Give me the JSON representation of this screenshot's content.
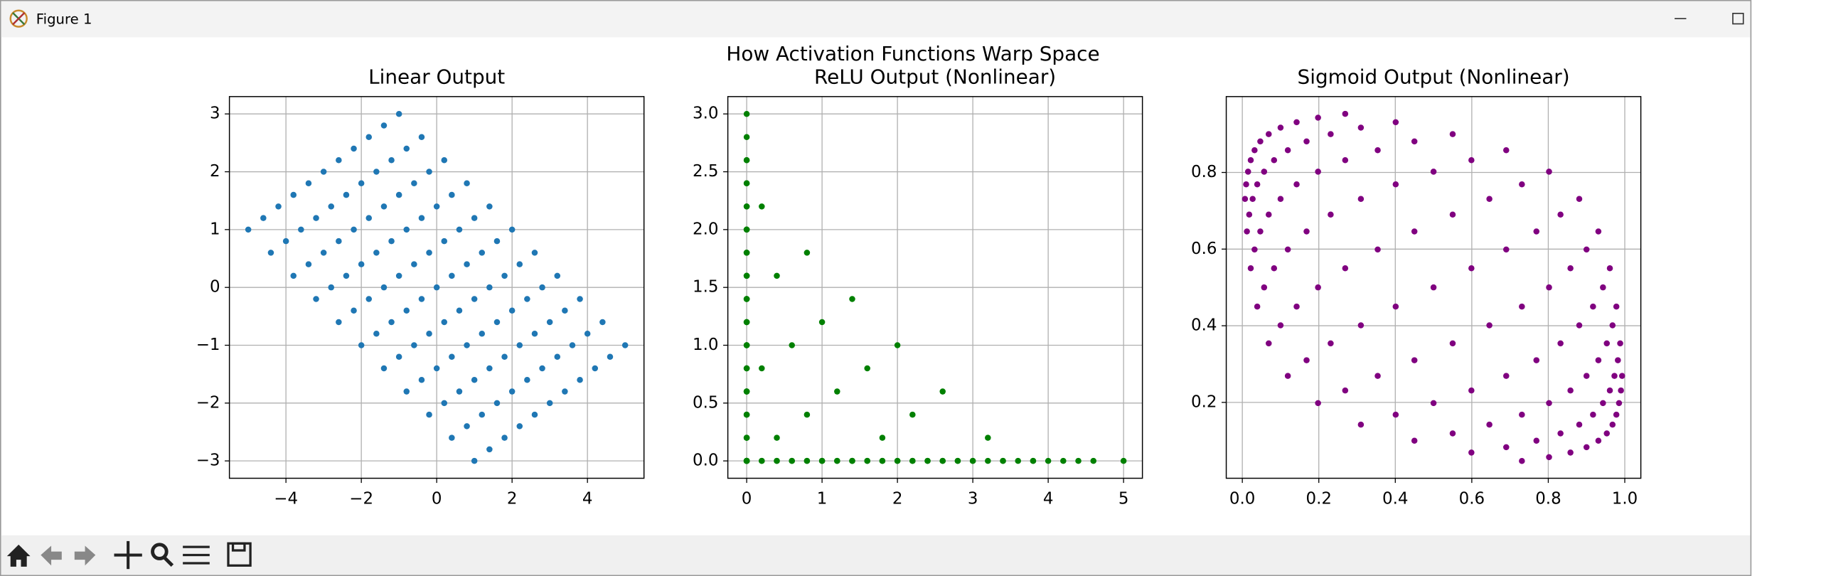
{
  "window": {
    "title": "Figure 1"
  },
  "figure_title": "How Activation Functions Warp Space",
  "chart_data": [
    {
      "type": "scatter",
      "title": "Linear Output",
      "color": "#1f77b4",
      "grid": true,
      "xlim": [
        -5.5,
        5.5
      ],
      "ylim": [
        -3.3,
        3.3
      ],
      "xticks": [
        {
          "value": -4,
          "label": "−4"
        },
        {
          "value": -2,
          "label": "−2"
        },
        0,
        2,
        4
      ],
      "yticks": [
        {
          "value": -3,
          "label": "−3"
        },
        {
          "value": -2,
          "label": "−2"
        },
        {
          "value": -1,
          "label": "−1"
        },
        0,
        1,
        2,
        3
      ],
      "x": [
        1,
        0.4,
        -0.2,
        -0.8,
        -1.4,
        -2,
        -2.6,
        -3.2,
        -3.8,
        -4.4,
        -5,
        1.4,
        0.8,
        0.2,
        -0.4,
        -1,
        -1.6,
        -2.2,
        -2.8,
        -3.4,
        -4,
        -4.6,
        1.8,
        1.2,
        0.6,
        0,
        -0.6,
        -1.2,
        -1.8,
        -2.4,
        -3,
        -3.6,
        -4.2,
        2.2,
        1.6,
        1,
        0.4,
        -0.2,
        -0.8,
        -1.4,
        -2,
        -2.6,
        -3.2,
        -3.8,
        2.6,
        2,
        1.4,
        0.8,
        0.2,
        -0.4,
        -1,
        -1.6,
        -2.2,
        -2.8,
        -3.4,
        3,
        2.4,
        1.8,
        1.2,
        0.6,
        0,
        -0.6,
        -1.2,
        -1.8,
        -2.4,
        -3,
        3.4,
        2.8,
        2.2,
        1.6,
        1,
        0.4,
        -0.2,
        -0.8,
        -1.4,
        -2,
        -2.6,
        3.8,
        3.2,
        2.6,
        2,
        1.4,
        0.8,
        0.2,
        -0.4,
        -1,
        -1.6,
        -2.2,
        4.2,
        3.6,
        3,
        2.4,
        1.8,
        1.2,
        0.6,
        0,
        -0.6,
        -1.2,
        -1.8,
        4.6,
        4,
        3.4,
        2.8,
        2.2,
        1.6,
        1,
        0.4,
        -0.2,
        -0.8,
        -1.4,
        5,
        4.4,
        3.8,
        3.2,
        2.6,
        2,
        1.4,
        0.8,
        0.2,
        -0.4,
        -1
      ],
      "values": [
        -3,
        -2.6,
        -2.2,
        -1.8,
        -1.4,
        -1,
        -0.6,
        -0.2,
        0.2,
        0.6,
        1,
        -2.8,
        -2.4,
        -2,
        -1.6,
        -1.2,
        -0.8,
        -0.4,
        0,
        0.4,
        0.8,
        1.2,
        -2.6,
        -2.2,
        -1.8,
        -1.4,
        -1,
        -0.6,
        -0.2,
        0.2,
        0.6,
        1,
        1.4,
        -2.4,
        -2,
        -1.6,
        -1.2,
        -0.8,
        -0.4,
        0,
        0.4,
        0.8,
        1.2,
        1.6,
        -2.2,
        -1.8,
        -1.4,
        -1,
        -0.6,
        -0.2,
        0.2,
        0.6,
        1,
        1.4,
        1.8,
        -2,
        -1.6,
        -1.2,
        -0.8,
        -0.4,
        0,
        0.4,
        0.8,
        1.2,
        1.6,
        2,
        -1.8,
        -1.4,
        -1,
        -0.6,
        -0.2,
        0.2,
        0.6,
        1,
        1.4,
        1.8,
        2.2,
        -1.6,
        -1.2,
        -0.8,
        -0.4,
        0,
        0.4,
        0.8,
        1.2,
        1.6,
        2,
        2.4,
        -1.4,
        -1,
        -0.6,
        -0.2,
        0.2,
        0.6,
        1,
        1.4,
        1.8,
        2.2,
        2.6,
        -1.2,
        -0.8,
        -0.4,
        0,
        0.4,
        0.8,
        1.2,
        1.6,
        2,
        2.4,
        2.8,
        -1,
        -0.6,
        -0.2,
        0.2,
        0.6,
        1,
        1.4,
        1.8,
        2.2,
        2.6,
        3
      ]
    },
    {
      "type": "scatter",
      "title": "ReLU Output (Nonlinear)",
      "color": "green",
      "grid": true,
      "xlim": [
        -0.25,
        5.25
      ],
      "ylim": [
        -0.15,
        3.15
      ],
      "xticks": [
        0,
        1,
        2,
        3,
        4,
        5
      ],
      "yticks": [
        {
          "value": 0,
          "label": "0.0"
        },
        0.5,
        {
          "value": 1,
          "label": "1.0"
        },
        1.5,
        {
          "value": 2,
          "label": "2.0"
        },
        2.5,
        {
          "value": 3,
          "label": "3.0"
        }
      ],
      "x": [
        1,
        0.4,
        0,
        0,
        0,
        0,
        0,
        0,
        0,
        0,
        0,
        1.4,
        0.8,
        0.2,
        0,
        0,
        0,
        0,
        0,
        0,
        0,
        0,
        1.8,
        1.2,
        0.6,
        0,
        0,
        0,
        0,
        0,
        0,
        0,
        0,
        2.2,
        1.6,
        1,
        0.4,
        0,
        0,
        0,
        0,
        0,
        0,
        0,
        2.6,
        2,
        1.4,
        0.8,
        0.2,
        0,
        0,
        0,
        0,
        0,
        0,
        3,
        2.4,
        1.8,
        1.2,
        0.6,
        0,
        0,
        0,
        0,
        0,
        0,
        3.4,
        2.8,
        2.2,
        1.6,
        1,
        0.4,
        0,
        0,
        0,
        0,
        0,
        3.8,
        3.2,
        2.6,
        2,
        1.4,
        0.8,
        0.2,
        0,
        0,
        0,
        0,
        4.2,
        3.6,
        3,
        2.4,
        1.8,
        1.2,
        0.6,
        0,
        0,
        0,
        0,
        4.6,
        4,
        3.4,
        2.8,
        2.2,
        1.6,
        1,
        0.4,
        0,
        0,
        0,
        5,
        4.4,
        3.8,
        3.2,
        2.6,
        2,
        1.4,
        0.8,
        0.2,
        0,
        0
      ],
      "values": [
        0,
        0,
        0,
        0,
        0,
        0,
        0,
        0,
        0.2,
        0.6,
        1,
        0,
        0,
        0,
        0,
        0,
        0,
        0,
        0,
        0.4,
        0.8,
        1.2,
        0,
        0,
        0,
        0,
        0,
        0,
        0,
        0.2,
        0.6,
        1,
        1.4,
        0,
        0,
        0,
        0,
        0,
        0,
        0,
        0.4,
        0.8,
        1.2,
        1.6,
        0,
        0,
        0,
        0,
        0,
        0,
        0.2,
        0.6,
        1,
        1.4,
        1.8,
        0,
        0,
        0,
        0,
        0,
        0,
        0.4,
        0.8,
        1.2,
        1.6,
        2,
        0,
        0,
        0,
        0,
        0,
        0.2,
        0.6,
        1,
        1.4,
        1.8,
        2.2,
        0,
        0,
        0,
        0,
        0,
        0.4,
        0.8,
        1.2,
        1.6,
        2,
        2.4,
        0,
        0,
        0,
        0,
        0.2,
        0.6,
        1,
        1.4,
        1.8,
        2.2,
        2.6,
        0,
        0,
        0,
        0,
        0.4,
        0.8,
        1.2,
        1.6,
        2,
        2.4,
        2.8,
        0,
        0,
        0,
        0.2,
        0.6,
        1,
        1.4,
        1.8,
        2.2,
        2.6,
        3
      ]
    },
    {
      "type": "scatter",
      "title": "Sigmoid Output (Nonlinear)",
      "color": "purple",
      "grid": true,
      "xlim": [
        -0.042,
        1.042
      ],
      "ylim": [
        0.002,
        0.998
      ],
      "xticks": [
        {
          "value": 0,
          "label": "0.0"
        },
        0.2,
        0.4,
        0.6,
        0.8,
        {
          "value": 1,
          "label": "1.0"
        }
      ],
      "yticks": [
        0.2,
        0.4,
        0.6,
        0.8
      ],
      "x": [
        0.731,
        0.599,
        0.45,
        0.31,
        0.198,
        0.119,
        0.069,
        0.039,
        0.022,
        0.012,
        0.007,
        0.802,
        0.69,
        0.55,
        0.401,
        0.269,
        0.168,
        0.1,
        0.057,
        0.032,
        0.018,
        0.01,
        0.858,
        0.769,
        0.646,
        0.5,
        0.354,
        0.231,
        0.142,
        0.083,
        0.047,
        0.027,
        0.015,
        0.9,
        0.832,
        0.731,
        0.599,
        0.45,
        0.31,
        0.198,
        0.119,
        0.069,
        0.039,
        0.022,
        0.931,
        0.881,
        0.802,
        0.69,
        0.55,
        0.401,
        0.269,
        0.168,
        0.1,
        0.057,
        0.032,
        0.953,
        0.917,
        0.858,
        0.769,
        0.646,
        0.5,
        0.354,
        0.231,
        0.142,
        0.083,
        0.047,
        0.968,
        0.943,
        0.9,
        0.832,
        0.731,
        0.599,
        0.45,
        0.31,
        0.198,
        0.119,
        0.069,
        0.978,
        0.961,
        0.931,
        0.881,
        0.802,
        0.69,
        0.55,
        0.401,
        0.269,
        0.168,
        0.1,
        0.985,
        0.973,
        0.953,
        0.917,
        0.858,
        0.769,
        0.646,
        0.5,
        0.354,
        0.231,
        0.142,
        0.99,
        0.982,
        0.968,
        0.943,
        0.9,
        0.832,
        0.731,
        0.599,
        0.45,
        0.31,
        0.198,
        0.993,
        0.988,
        0.978,
        0.961,
        0.931,
        0.881,
        0.802,
        0.69,
        0.55,
        0.401,
        0.269
      ],
      "values": [
        0.047,
        0.069,
        0.1,
        0.142,
        0.198,
        0.269,
        0.354,
        0.45,
        0.55,
        0.646,
        0.731,
        0.057,
        0.083,
        0.119,
        0.168,
        0.231,
        0.31,
        0.401,
        0.5,
        0.599,
        0.69,
        0.769,
        0.069,
        0.1,
        0.142,
        0.198,
        0.269,
        0.354,
        0.45,
        0.55,
        0.646,
        0.731,
        0.802,
        0.083,
        0.119,
        0.168,
        0.231,
        0.31,
        0.401,
        0.5,
        0.599,
        0.69,
        0.769,
        0.832,
        0.1,
        0.142,
        0.198,
        0.269,
        0.354,
        0.45,
        0.55,
        0.646,
        0.731,
        0.802,
        0.858,
        0.119,
        0.168,
        0.231,
        0.31,
        0.401,
        0.5,
        0.599,
        0.69,
        0.769,
        0.832,
        0.881,
        0.142,
        0.198,
        0.269,
        0.354,
        0.45,
        0.55,
        0.646,
        0.731,
        0.802,
        0.858,
        0.9,
        0.168,
        0.231,
        0.31,
        0.401,
        0.5,
        0.599,
        0.69,
        0.769,
        0.832,
        0.881,
        0.917,
        0.198,
        0.269,
        0.354,
        0.45,
        0.55,
        0.646,
        0.731,
        0.802,
        0.858,
        0.9,
        0.931,
        0.231,
        0.31,
        0.401,
        0.5,
        0.599,
        0.69,
        0.769,
        0.832,
        0.881,
        0.917,
        0.943,
        0.269,
        0.354,
        0.45,
        0.55,
        0.646,
        0.731,
        0.802,
        0.858,
        0.9,
        0.931,
        0.953
      ]
    }
  ]
}
